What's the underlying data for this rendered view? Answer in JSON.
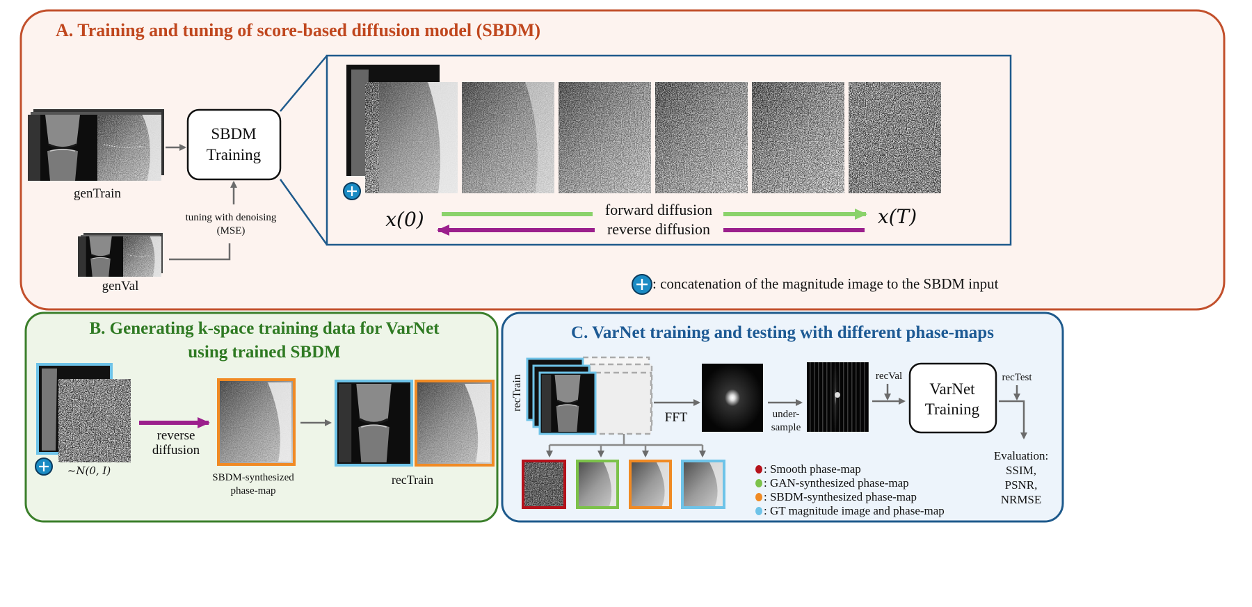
{
  "panelA": {
    "title": "A. Training and tuning of score-based diffusion model (SBDM)",
    "gen_train_label": "genTrain",
    "gen_val_label": "genVal",
    "sbdm_box_line1": "SBDM",
    "sbdm_box_line2": "Training",
    "tuning_line1": "tuning with denoising",
    "tuning_line2": "(MSE)",
    "x0_label": "x(0)",
    "xT_label": "x(T)",
    "forward_label": "forward diffusion",
    "reverse_label": "reverse diffusion",
    "legend_text": ": concatenation of the magnitude image to the SBDM input"
  },
  "panelB": {
    "title_line1": "B. Generating k-space training data for VarNet",
    "title_line2": "using trained SBDM",
    "reverse_line1": "reverse",
    "reverse_line2": "diffusion",
    "noise_label": "~N(0, I)",
    "synth_line1": "SBDM-synthesized",
    "synth_line2": "phase-map",
    "rectrain_label": "recTrain"
  },
  "panelC": {
    "title": "C. VarNet training and testing with different phase-maps",
    "rectrain_vertical": "recTrain",
    "fft_label": "FFT",
    "undersample_line1": "under-",
    "undersample_line2": "sample",
    "recval_label": "recVal",
    "rectest_label": "recTest",
    "varnet_line1": "VarNet",
    "varnet_line2": "Training",
    "eval_title": "Evaluation:",
    "eval_items": [
      "SSIM,",
      "PSNR,",
      "NRMSE"
    ],
    "legend": [
      {
        "text": ": Smooth phase-map",
        "color": "#b5121b"
      },
      {
        "text": ": GAN-synthesized phase-map",
        "color": "#7cc24a"
      },
      {
        "text": ": SBDM-synthesized phase-map",
        "color": "#f08a24"
      },
      {
        "text": ": GT magnitude image and phase-map",
        "color": "#6ec3e8"
      }
    ]
  },
  "colors": {
    "panelA_border": "#c2502c",
    "panelA_fill": "#fdf3ef",
    "panelA_title": "#c0471e",
    "panelB_border": "#3b7f2b",
    "panelB_fill": "#eef5e8",
    "panelB_title": "#2f7a23",
    "panelC_border": "#1e5a8c",
    "panelC_fill": "#edf4fb",
    "panelC_title": "#1d5a94",
    "forward_arrow": "#8ad26a",
    "reverse_arrow": "#9b1f8c",
    "concat_icon": "#1a8bc4"
  }
}
